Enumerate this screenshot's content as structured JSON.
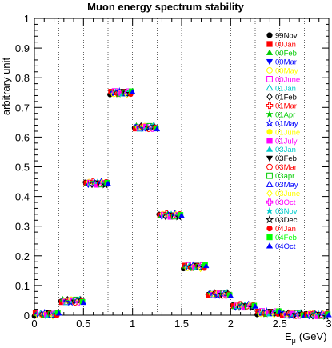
{
  "chart_data": {
    "type": "scatter",
    "title": "Muon energy spectrum stability",
    "ylabel": "arbitrary unit",
    "xlabel_main": "E",
    "xlabel_sub": "μ",
    "xlabel_unit": "(GeV)",
    "xlim": [
      0,
      3
    ],
    "ylim": [
      0,
      1
    ],
    "x_ticks": [
      "0",
      "0.5",
      "1",
      "1.5",
      "2",
      "2.5",
      "3"
    ],
    "y_ticks": [
      "0",
      "0.1",
      "0.2",
      "0.3",
      "0.4",
      "0.5",
      "0.6",
      "0.7",
      "0.8",
      "0.9",
      "1"
    ],
    "bin_edges": [
      0.25,
      0.5,
      0.75,
      1.0,
      1.25,
      1.5,
      1.75,
      2.0,
      2.25,
      2.5,
      2.75
    ],
    "grid": "vertical dotted lines at bin edges",
    "legend_position": "right",
    "bins": [
      {
        "x_from": 0.0,
        "x_to": 0.25,
        "y": 0.003
      },
      {
        "x_from": 0.27,
        "x_to": 0.5,
        "y": 0.048
      },
      {
        "x_from": 0.52,
        "x_to": 0.75,
        "y": 0.445
      },
      {
        "x_from": 0.77,
        "x_to": 1.0,
        "y": 0.749
      },
      {
        "x_from": 1.02,
        "x_to": 1.25,
        "y": 0.633
      },
      {
        "x_from": 1.27,
        "x_to": 1.5,
        "y": 0.337
      },
      {
        "x_from": 1.52,
        "x_to": 1.75,
        "y": 0.163
      },
      {
        "x_from": 1.77,
        "x_to": 2.0,
        "y": 0.071
      },
      {
        "x_from": 2.02,
        "x_to": 2.25,
        "y": 0.031
      },
      {
        "x_from": 2.27,
        "x_to": 2.5,
        "y": 0.008
      },
      {
        "x_from": 2.52,
        "x_to": 2.75,
        "y": 0.003
      },
      {
        "x_from": 2.77,
        "x_to": 3.0,
        "y": 0.002
      }
    ],
    "series": [
      {
        "name": "99Nov",
        "color": "#000000",
        "marker": "circle"
      },
      {
        "name": "00Jan",
        "color": "#ff0000",
        "marker": "square"
      },
      {
        "name": "00Feb",
        "color": "#00cc00",
        "marker": "triangle-up"
      },
      {
        "name": "00Mar",
        "color": "#0000ff",
        "marker": "triangle-down"
      },
      {
        "name": "00May",
        "color": "#ffff00",
        "marker": "circle-open"
      },
      {
        "name": "00June",
        "color": "#ff00ff",
        "marker": "square-open"
      },
      {
        "name": "01Jan",
        "color": "#00cccc",
        "marker": "triangle-up-open"
      },
      {
        "name": "01Feb",
        "color": "#000000",
        "marker": "diamond-open"
      },
      {
        "name": "01Mar",
        "color": "#ff0000",
        "marker": "cross-open"
      },
      {
        "name": "01Apr",
        "color": "#00cc00",
        "marker": "star"
      },
      {
        "name": "01May",
        "color": "#0000ff",
        "marker": "star-open"
      },
      {
        "name": "01June",
        "color": "#ffff00",
        "marker": "circle"
      },
      {
        "name": "01July",
        "color": "#ff00ff",
        "marker": "square"
      },
      {
        "name": "03Jan",
        "color": "#00cccc",
        "marker": "triangle-up"
      },
      {
        "name": "03Feb",
        "color": "#000000",
        "marker": "triangle-down"
      },
      {
        "name": "03Mar",
        "color": "#ff0000",
        "marker": "circle-open"
      },
      {
        "name": "03apr",
        "color": "#00cc00",
        "marker": "square-open"
      },
      {
        "name": "03May",
        "color": "#0000ff",
        "marker": "triangle-up-open"
      },
      {
        "name": "03June",
        "color": "#ffff00",
        "marker": "diamond-open"
      },
      {
        "name": "03Oct",
        "color": "#ff00ff",
        "marker": "cross-open"
      },
      {
        "name": "03Nov",
        "color": "#00cccc",
        "marker": "star"
      },
      {
        "name": "03Dec",
        "color": "#000000",
        "marker": "star-open"
      },
      {
        "name": "04Jan",
        "color": "#ff0000",
        "marker": "circle"
      },
      {
        "name": "04Feb",
        "color": "#00ff00",
        "marker": "square"
      },
      {
        "name": "04Oct",
        "color": "#0000ff",
        "marker": "triangle-up"
      }
    ]
  }
}
